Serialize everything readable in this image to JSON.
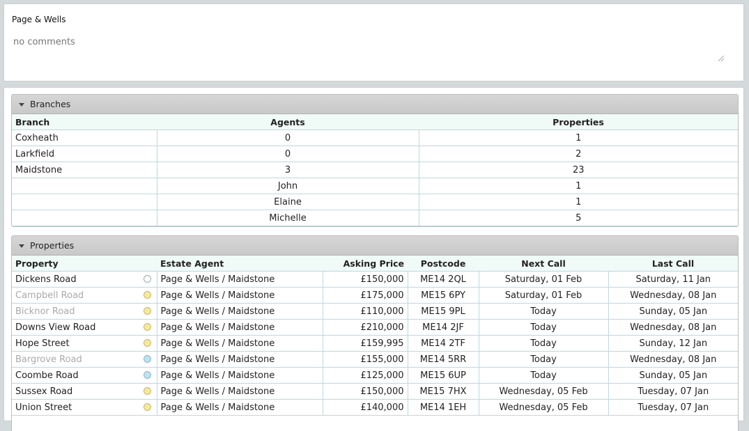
{
  "company": {
    "name": "Page & Wells",
    "comments_placeholder": "no comments"
  },
  "branches": {
    "title": "Branches",
    "columns": [
      "Branch",
      "Agents",
      "Properties"
    ],
    "rows": [
      {
        "branch": "Coxheath",
        "agents": "0",
        "properties": "1"
      },
      {
        "branch": "Larkfield",
        "agents": "0",
        "properties": "2"
      },
      {
        "branch": "Maidstone",
        "agents": "3",
        "properties": "23"
      },
      {
        "branch": "",
        "agents": "John",
        "properties": "1"
      },
      {
        "branch": "",
        "agents": "Elaine",
        "properties": "1"
      },
      {
        "branch": "",
        "agents": "Michelle",
        "properties": "5"
      }
    ]
  },
  "properties": {
    "title": "Properties",
    "columns": [
      "Property",
      "Estate Agent",
      "Asking Price",
      "Postcode",
      "Next Call",
      "Last Call"
    ],
    "rows": [
      {
        "property": "Dickens Road",
        "muted": false,
        "status": "white",
        "agent": "Page & Wells / Maidstone",
        "price": "£150,000",
        "postcode": "ME14 2QL",
        "next_call": "Saturday, 01 Feb",
        "last_call": "Saturday, 11 Jan"
      },
      {
        "property": "Campbell Road",
        "muted": true,
        "status": "yellow",
        "agent": "Page & Wells / Maidstone",
        "price": "£175,000",
        "postcode": "ME15 6PY",
        "next_call": "Saturday, 01 Feb",
        "last_call": "Wednesday, 08 Jan"
      },
      {
        "property": "Bicknor Road",
        "muted": true,
        "status": "yellow",
        "agent": "Page & Wells / Maidstone",
        "price": "£110,000",
        "postcode": "ME15 9PL",
        "next_call": "Today",
        "last_call": "Sunday, 05 Jan"
      },
      {
        "property": "Downs View Road",
        "muted": false,
        "status": "yellow",
        "agent": "Page & Wells / Maidstone",
        "price": "£210,000",
        "postcode": "ME14 2JF",
        "next_call": "Today",
        "last_call": "Wednesday, 08 Jan"
      },
      {
        "property": "Hope Street",
        "muted": false,
        "status": "yellow",
        "agent": "Page & Wells / Maidstone",
        "price": "£159,995",
        "postcode": "ME14 2TF",
        "next_call": "Today",
        "last_call": "Sunday, 12 Jan"
      },
      {
        "property": "Bargrove Road",
        "muted": true,
        "status": "blue",
        "agent": "Page & Wells / Maidstone",
        "price": "£155,000",
        "postcode": "ME14 5RR",
        "next_call": "Today",
        "last_call": "Wednesday, 08 Jan"
      },
      {
        "property": "Coombe Road",
        "muted": false,
        "status": "blue",
        "agent": "Page & Wells / Maidstone",
        "price": "£125,000",
        "postcode": "ME15 6UP",
        "next_call": "Today",
        "last_call": "Sunday, 05 Jan"
      },
      {
        "property": "Sussex Road",
        "muted": false,
        "status": "yellow",
        "agent": "Page & Wells / Maidstone",
        "price": "£150,000",
        "postcode": "ME15 7HX",
        "next_call": "Wednesday, 05 Feb",
        "last_call": "Tuesday, 07 Jan"
      },
      {
        "property": "Union Street",
        "muted": false,
        "status": "yellow",
        "agent": "Page & Wells / Maidstone",
        "price": "£140,000",
        "postcode": "ME14 1EH",
        "next_call": "Wednesday, 05 Feb",
        "last_call": "Tuesday, 07 Jan"
      }
    ]
  },
  "status_colors": {
    "white": "#ffffff",
    "yellow": "#f6e89c",
    "blue": "#bde2f3"
  }
}
